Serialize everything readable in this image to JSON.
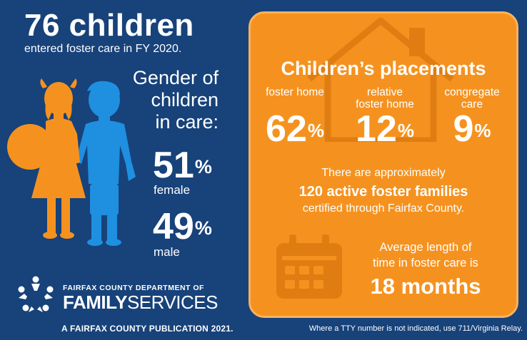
{
  "headline": "76 children",
  "subhead": "entered foster care in FY 2020.",
  "gender": {
    "title_lines": [
      "Gender of",
      "children",
      "in care:"
    ],
    "female": {
      "value": "51",
      "unit": "%",
      "label": "female"
    },
    "male": {
      "value": "49",
      "unit": "%",
      "label": "male"
    }
  },
  "placements": {
    "title": "Children’s placements",
    "items": [
      {
        "label_lines": [
          "foster home"
        ],
        "value": "62",
        "unit": "%"
      },
      {
        "label_lines": [
          "relative",
          "foster home"
        ],
        "value": "12",
        "unit": "%"
      },
      {
        "label_lines": [
          "congregate",
          "care"
        ],
        "value": "9",
        "unit": "%"
      }
    ]
  },
  "families": {
    "line1": "There are approximately",
    "line2": "120 active foster families",
    "line3": "certified through Fairfax County."
  },
  "length": {
    "line1": "Average length of",
    "line2": "time in foster care is",
    "value": "18 months"
  },
  "org": {
    "top": "FAIRFAX COUNTY DEPARTMENT OF",
    "bold": "FAMILY",
    "rest": "SERVICES"
  },
  "publication": "A FAIRFAX COUNTY PUBLICATION 2021.",
  "tty_note": "Where a TTY number is not indicated, use 711/Virginia Relay.",
  "colors": {
    "background": "#17427a",
    "panel": "#f5921f",
    "girl": "#f5921f",
    "boy": "#1f8fe0"
  },
  "icons": [
    "children-silhouette-icon",
    "house-icon",
    "calendar-icon",
    "family-services-logo-icon"
  ]
}
